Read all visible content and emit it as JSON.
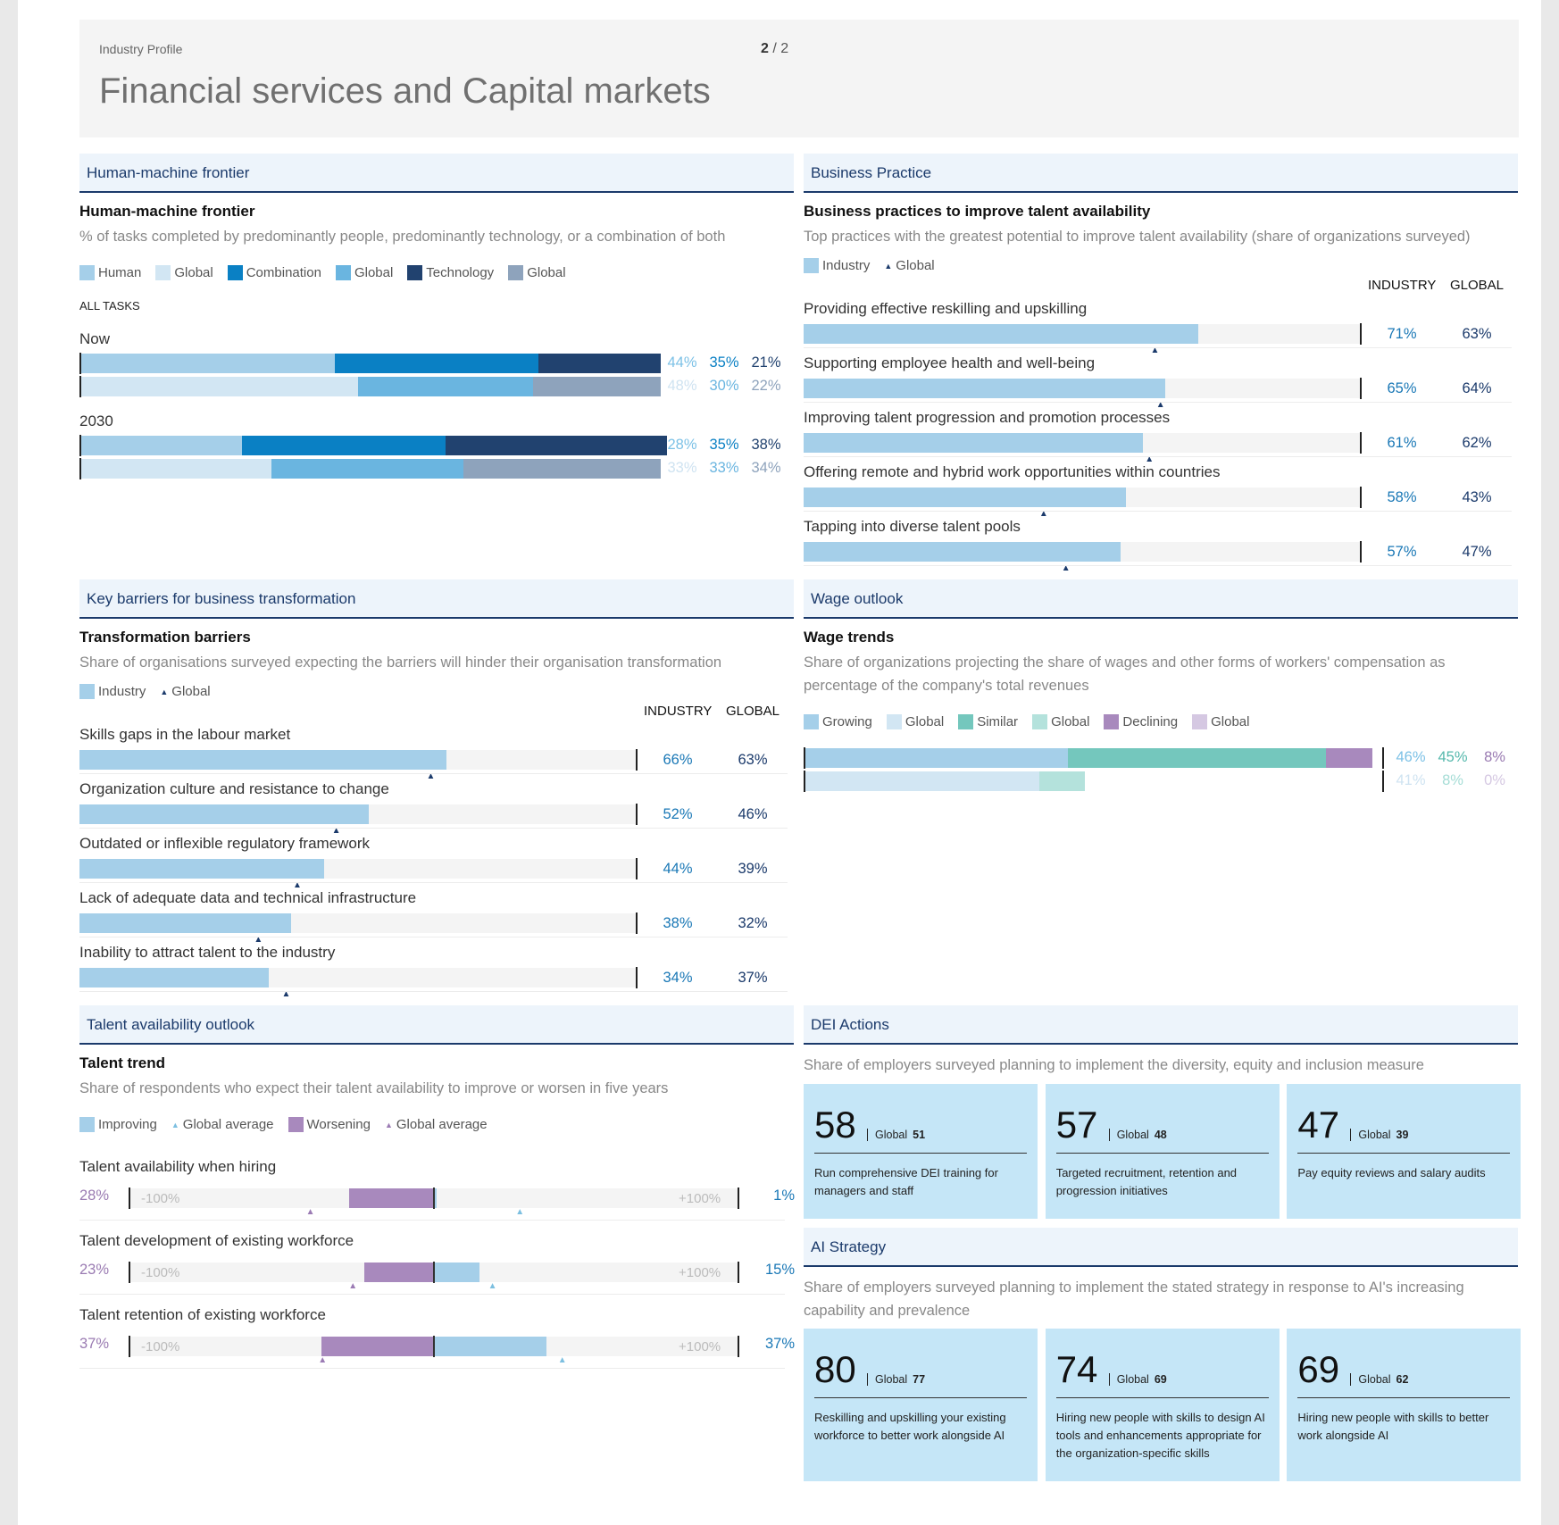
{
  "header": {
    "kicker": "Industry Profile",
    "page_current": "2",
    "page_sep": "/",
    "page_total": "2",
    "title": "Financial services and Capital markets"
  },
  "hmf": {
    "section": "Human-machine frontier",
    "title": "Human-machine frontier",
    "desc": "% of tasks completed by predominantly people, predominantly technology, or a combination of both",
    "legend": [
      "Human",
      "Global",
      "Combination",
      "Global",
      "Technology",
      "Global"
    ],
    "all_tasks": "ALL TASKS",
    "colors": {
      "human": "#a5cfe9",
      "human_g": "#d2e6f3",
      "combo": "#0a80c4",
      "combo_g": "#6ab5e0",
      "tech": "#21426f",
      "tech_g": "#8ea3bc"
    }
  },
  "bp": {
    "section": "Business Practice",
    "title": "Business practices to improve talent availability",
    "desc": "Top practices with the greatest potential to improve talent availability (share of organizations surveyed)",
    "legend_industry": "Industry",
    "legend_global": "Global",
    "col_industry": "INDUSTRY",
    "col_global": "GLOBAL"
  },
  "kb": {
    "section": "Key barriers for business transformation",
    "title": "Transformation barriers",
    "desc": "Share of organisations surveyed expecting the barriers will hinder their organisation transformation",
    "legend_industry": "Industry",
    "legend_global": "Global",
    "col_industry": "INDUSTRY",
    "col_global": "GLOBAL"
  },
  "wo": {
    "section": "Wage outlook",
    "title": "Wage trends",
    "desc_line1": "Share of organizations projecting the share of wages and other forms of workers' compensation as",
    "desc_line2": "percentage of the company's total revenues",
    "legend": [
      "Growing",
      "Global",
      "Similar",
      "Global",
      "Declining",
      "Global"
    ]
  },
  "ta": {
    "section": "Talent availability outlook",
    "title": "Talent trend",
    "desc": "Share of respondents who expect their talent availability to improve or worsen in five years",
    "legend": [
      "Improving",
      "Global average",
      "Worsening",
      "Global average"
    ],
    "axis_min": "-100%",
    "axis_max": "+100%"
  },
  "dei": {
    "section": "DEI Actions",
    "desc": "Share of employers surveyed planning to implement the diversity, equity and inclusion measure",
    "global_label": "Global",
    "cards": [
      {
        "value": "58",
        "global": "51",
        "text": "Run comprehensive DEI training for managers and staff"
      },
      {
        "value": "57",
        "global": "48",
        "text": "Targeted recruitment, retention and progression initiatives"
      },
      {
        "value": "47",
        "global": "39",
        "text": "Pay equity reviews and salary audits"
      }
    ]
  },
  "ai": {
    "section": "AI Strategy",
    "desc_line1": "Share of employers surveyed planning to implement the stated strategy in response to AI's increasing",
    "desc_line2": "capability and prevalence",
    "global_label": "Global",
    "cards": [
      {
        "value": "80",
        "global": "77",
        "text": "Reskilling and upskilling your existing workforce to better work alongside AI"
      },
      {
        "value": "74",
        "global": "69",
        "text": "Hiring new people with skills to design AI tools and enhancements appropriate for the organization-specific skills"
      },
      {
        "value": "69",
        "global": "62",
        "text": "Hiring new people with skills to better work alongside AI"
      }
    ]
  },
  "chart_data": [
    {
      "id": "human_machine_frontier",
      "type": "bar",
      "stacked": true,
      "categories": [
        "Now",
        "2030"
      ],
      "series": [
        {
          "name": "Human",
          "industry": [
            44,
            28
          ],
          "global": [
            48,
            33
          ],
          "labels_industry": [
            "44%",
            "28%"
          ],
          "labels_global": [
            "48%",
            "33%"
          ]
        },
        {
          "name": "Combination",
          "industry": [
            35,
            35
          ],
          "global": [
            30,
            33
          ],
          "labels_industry": [
            "35%",
            "35%"
          ],
          "labels_global": [
            "30%",
            "33%"
          ]
        },
        {
          "name": "Technology",
          "industry": [
            21,
            38
          ],
          "global": [
            22,
            34
          ],
          "labels_industry": [
            "21%",
            "38%"
          ],
          "labels_global": [
            "22%",
            "34%"
          ]
        }
      ],
      "ylim": [
        0,
        100
      ]
    },
    {
      "id": "business_practices",
      "type": "bar",
      "categories": [
        "Providing effective reskilling and upskilling",
        "Supporting employee health and well-being",
        "Improving talent progression and promotion processes",
        "Offering remote and hybrid work opportunities within countries",
        "Tapping into diverse talent pools"
      ],
      "industry": [
        71,
        65,
        61,
        58,
        57
      ],
      "global": [
        63,
        64,
        62,
        43,
        47
      ],
      "labels_industry": [
        "71%",
        "65%",
        "61%",
        "58%",
        "57%"
      ],
      "labels_global": [
        "63%",
        "64%",
        "62%",
        "43%",
        "47%"
      ],
      "xlim": [
        0,
        100
      ]
    },
    {
      "id": "transformation_barriers",
      "type": "bar",
      "categories": [
        "Skills gaps in the labour market",
        "Organization culture and resistance to change",
        "Outdated or inflexible regulatory framework",
        "Lack of adequate data and technical infrastructure",
        "Inability to attract talent to the industry"
      ],
      "industry": [
        66,
        52,
        44,
        38,
        34
      ],
      "global": [
        63,
        46,
        39,
        32,
        37
      ],
      "labels_industry": [
        "66%",
        "52%",
        "44%",
        "38%",
        "34%"
      ],
      "labels_global": [
        "63%",
        "46%",
        "39%",
        "32%",
        "37%"
      ],
      "xlim": [
        0,
        100
      ]
    },
    {
      "id": "wage_trends",
      "type": "bar",
      "stacked": true,
      "series": [
        {
          "name": "Growing",
          "industry": 46,
          "global": 41,
          "label_industry": "46%",
          "label_global": "41%"
        },
        {
          "name": "Similar",
          "industry": 45,
          "global": 8,
          "label_industry": "45%",
          "label_global": "8%"
        },
        {
          "name": "Declining",
          "industry": 8,
          "global": 0,
          "label_industry": "8%",
          "label_global": "0%"
        }
      ],
      "xlim": [
        0,
        100
      ]
    },
    {
      "id": "talent_trend",
      "type": "bar",
      "diverging": true,
      "categories": [
        "Talent availability when hiring",
        "Talent development of existing workforce",
        "Talent retention of existing workforce"
      ],
      "worsening": [
        28,
        23,
        37
      ],
      "improving": [
        1,
        15,
        37
      ],
      "labels_worsening": [
        "28%",
        "23%",
        "37%"
      ],
      "labels_improving": [
        "1%",
        "15%",
        "37%"
      ],
      "global_worsening": [
        41,
        27,
        37
      ],
      "global_improving": [
        28,
        19,
        42
      ],
      "xlim": [
        -100,
        100
      ]
    }
  ]
}
